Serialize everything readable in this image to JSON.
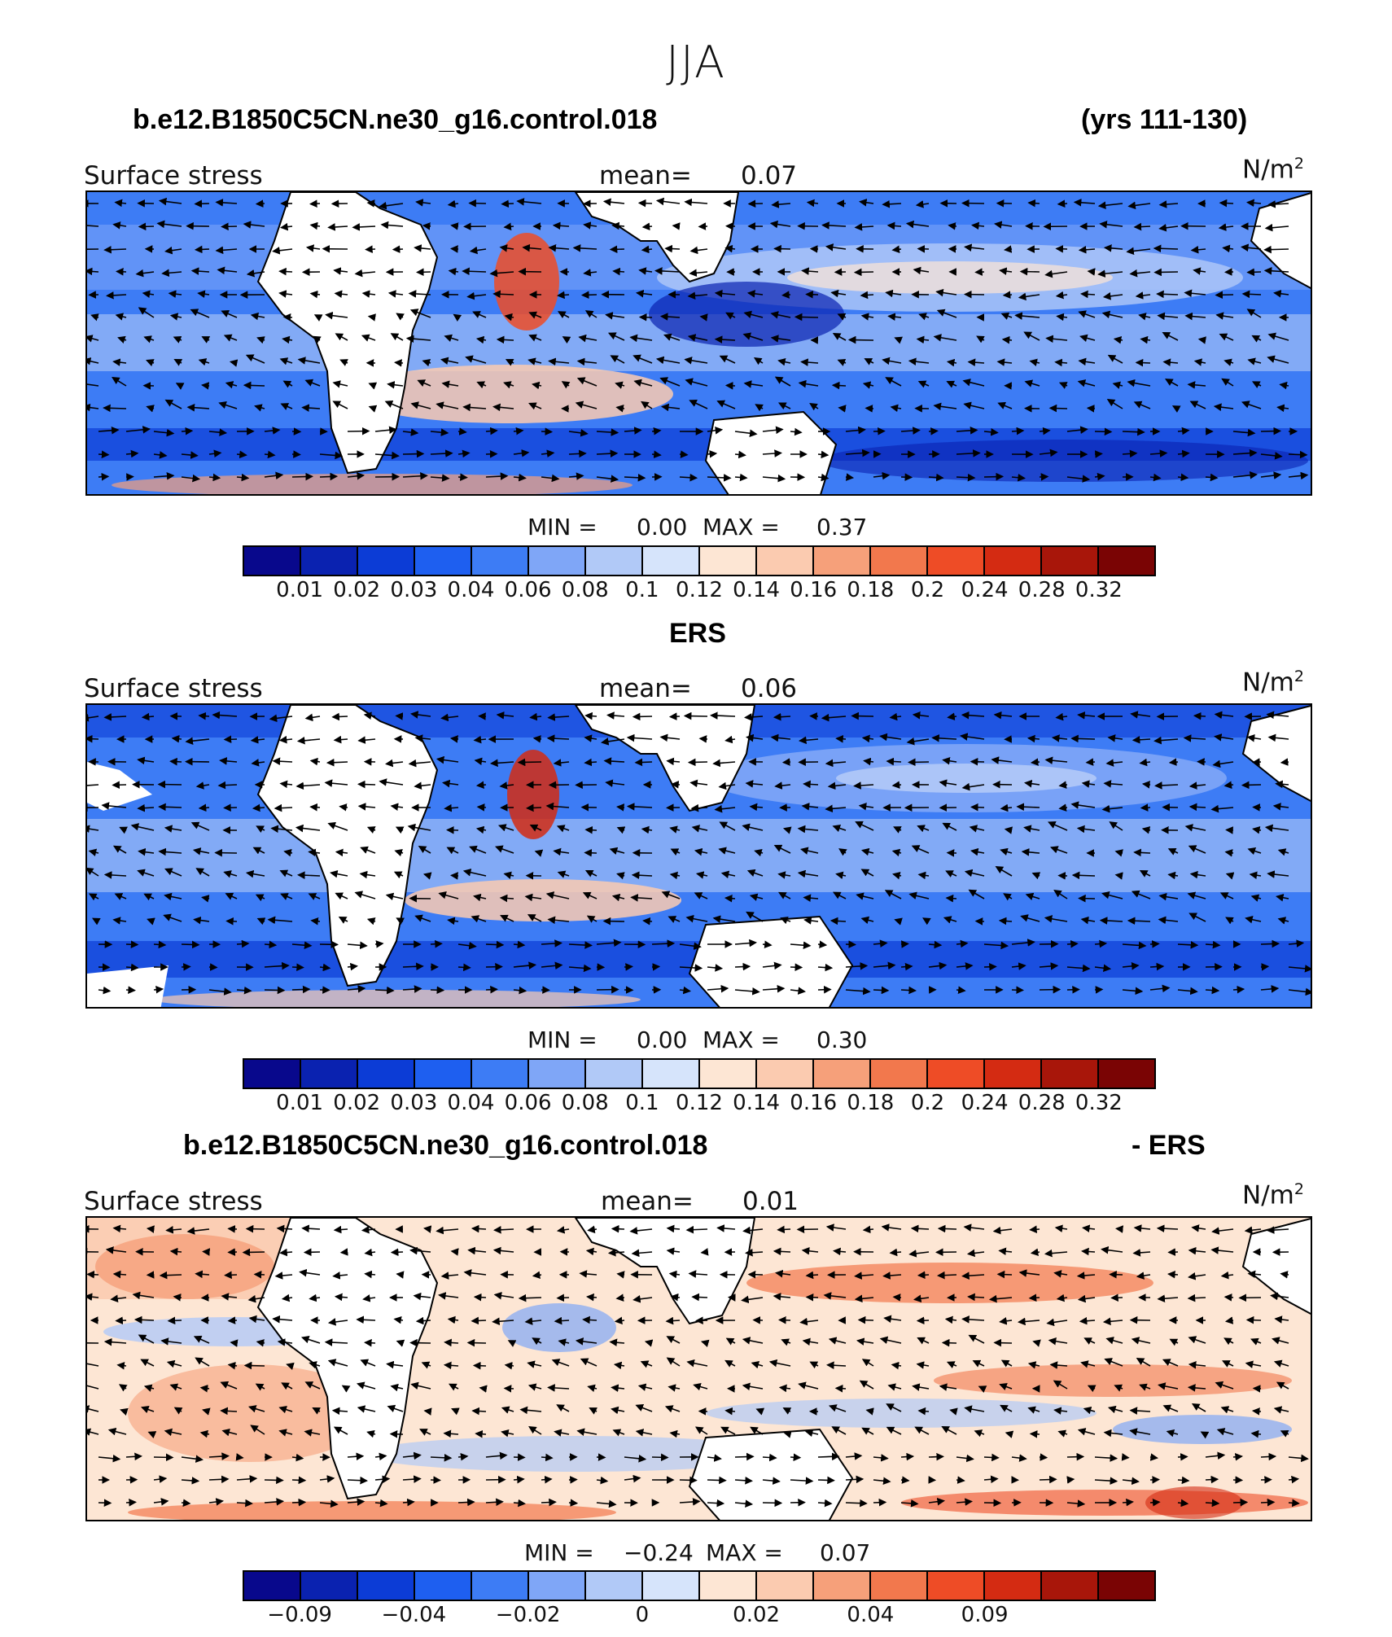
{
  "figure": {
    "title": "JJA"
  },
  "panels": [
    {
      "id": "model",
      "case_title": "b.e12.B1850C5CN.ne30_g16.control.018",
      "case_right": "(yrs 111-130)",
      "left_label": "Surface stress",
      "mean_label": "mean=",
      "mean_value": "0.07",
      "units": "N/m",
      "units_sup": "2",
      "min_label": "MIN =",
      "min_value": "0.00",
      "max_label": "MAX =",
      "max_value": "0.37",
      "scale": "magnitude"
    },
    {
      "id": "obs",
      "case_title": "ERS",
      "case_right": "",
      "left_label": "Surface stress",
      "mean_label": "mean=",
      "mean_value": "0.06",
      "units": "N/m",
      "units_sup": "2",
      "min_label": "MIN =",
      "min_value": "0.00",
      "max_label": "MAX =",
      "max_value": "0.30",
      "scale": "magnitude"
    },
    {
      "id": "diff",
      "case_title": "b.e12.B1850C5CN.ne30_g16.control.018",
      "case_right": "- ERS",
      "left_label": "Surface stress",
      "mean_label": "mean=",
      "mean_value": "0.01",
      "units": "N/m",
      "units_sup": "2",
      "min_label": "MIN =",
      "min_value": "−0.24",
      "max_label": "MAX =",
      "max_value": "0.07",
      "scale": "difference"
    }
  ],
  "colorbars": {
    "magnitude": {
      "colors": [
        "#08088c",
        "#0a22b0",
        "#0c3cd6",
        "#1e5ff0",
        "#3d7cf5",
        "#7fa6f7",
        "#b1c9f7",
        "#d6e4fb",
        "#fde6d4",
        "#fbcbb0",
        "#f6a07a",
        "#f2784d",
        "#ee4c26",
        "#d42b12",
        "#a8160a",
        "#7a0404"
      ],
      "tick_labels": [
        "0.01",
        "0.02",
        "0.03",
        "0.04",
        "0.06",
        "0.08",
        "0.1",
        "0.12",
        "0.14",
        "0.16",
        "0.18",
        "0.2",
        "0.24",
        "0.28",
        "0.32"
      ]
    },
    "difference": {
      "colors": [
        "#08088c",
        "#0a22b0",
        "#0c3cd6",
        "#1e5ff0",
        "#3d7cf5",
        "#7fa6f7",
        "#b1c9f7",
        "#d6e4fb",
        "#fde6d4",
        "#fbcbb0",
        "#f6a07a",
        "#f2784d",
        "#ee4c26",
        "#d42b12",
        "#a8160a",
        "#7a0404"
      ],
      "tick_labels": [
        "−0.09",
        "",
        "−0.04",
        "",
        "−0.02",
        "",
        "0",
        "",
        "0.02",
        "",
        "0.04",
        "",
        "0.09",
        "",
        ""
      ]
    }
  }
}
